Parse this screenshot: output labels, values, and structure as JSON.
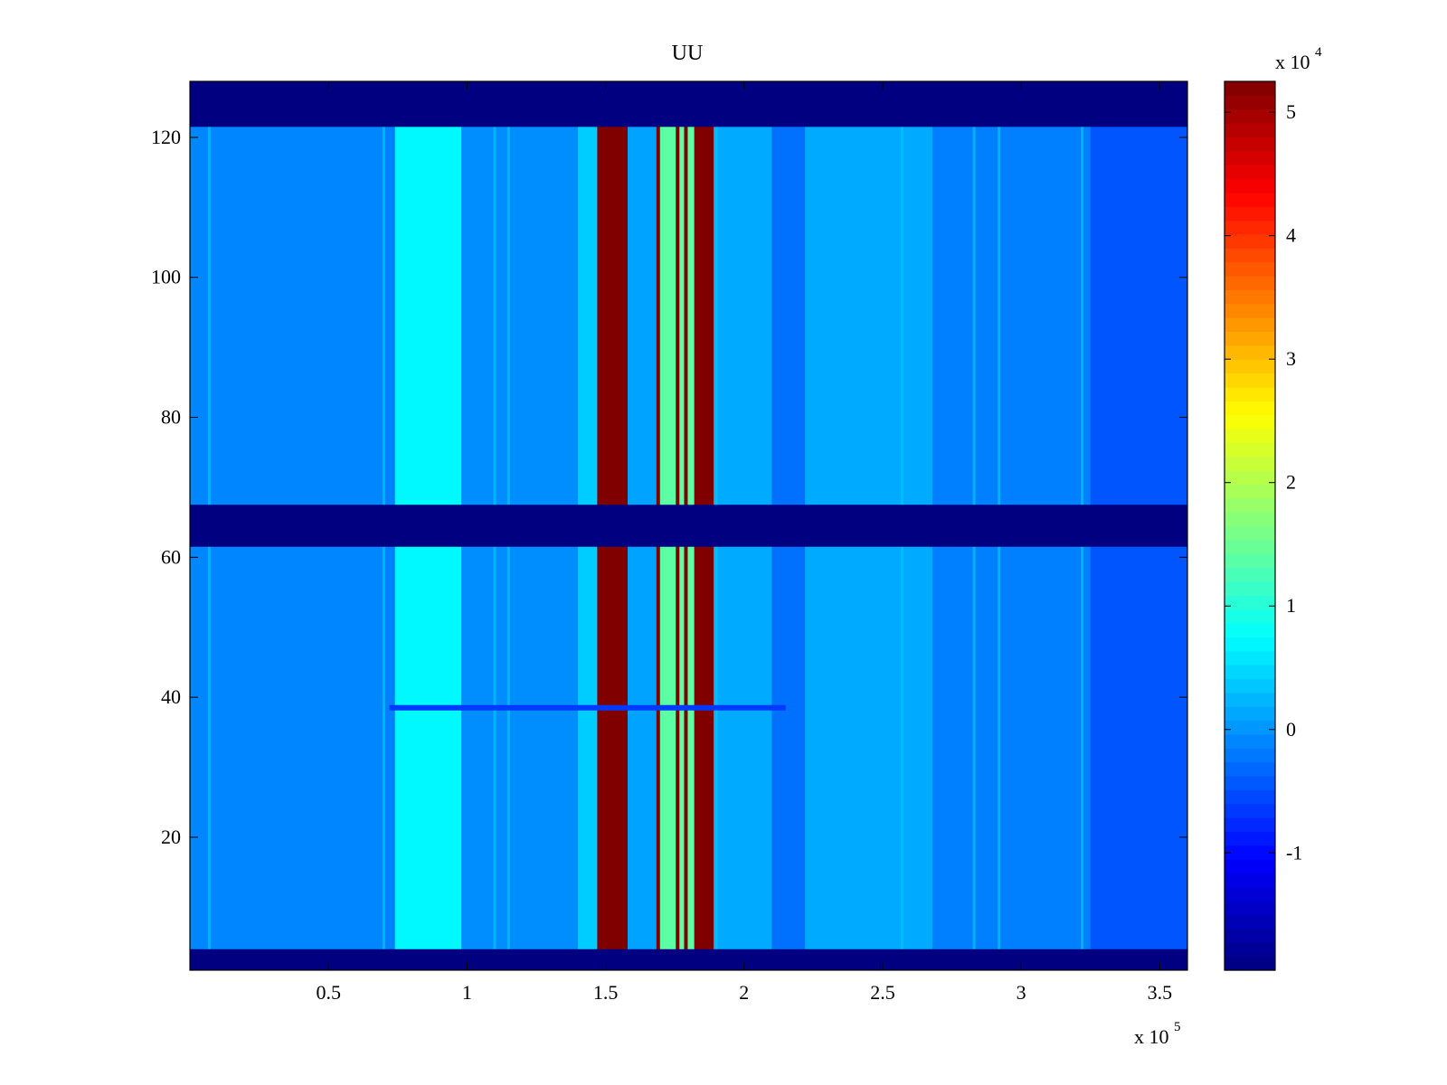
{
  "chart_data": {
    "type": "heatmap",
    "title": "UU",
    "colormap": "jet",
    "xlim": [
      0,
      360000
    ],
    "ylim": [
      1,
      128
    ],
    "x_ticks": [
      {
        "value": 50000,
        "label": "0.5"
      },
      {
        "value": 100000,
        "label": "1"
      },
      {
        "value": 150000,
        "label": "1.5"
      },
      {
        "value": 200000,
        "label": "2"
      },
      {
        "value": 250000,
        "label": "2.5"
      },
      {
        "value": 300000,
        "label": "3"
      },
      {
        "value": 350000,
        "label": "3.5"
      }
    ],
    "x_exponent_label": "x 10",
    "x_exponent_power": "5",
    "y_ticks": [
      {
        "value": 20,
        "label": "20"
      },
      {
        "value": 40,
        "label": "40"
      },
      {
        "value": 60,
        "label": "60"
      },
      {
        "value": 80,
        "label": "80"
      },
      {
        "value": 100,
        "label": "100"
      },
      {
        "value": 120,
        "label": "120"
      }
    ],
    "colorbar": {
      "clim": [
        -19500,
        52500
      ],
      "ticks": [
        {
          "value": -10000,
          "label": "-1"
        },
        {
          "value": 0,
          "label": "0"
        },
        {
          "value": 10000,
          "label": "1"
        },
        {
          "value": 20000,
          "label": "2"
        },
        {
          "value": 30000,
          "label": "3"
        },
        {
          "value": 40000,
          "label": "4"
        },
        {
          "value": 50000,
          "label": "5"
        }
      ],
      "exponent_label": "x 10",
      "exponent_power": "4"
    },
    "background_value": -1500,
    "low_rows": [
      {
        "y_from": 1,
        "y_to": 4,
        "value": -19500
      },
      {
        "y_from": 61.5,
        "y_to": 67.5,
        "value": -19500
      },
      {
        "y_from": 121.5,
        "y_to": 128,
        "value": -19500
      }
    ],
    "column_bands": [
      {
        "x_from": 0,
        "x_to": 70000,
        "value": -1000
      },
      {
        "x_from": 74000,
        "x_to": 98000,
        "value": 7000
      },
      {
        "x_from": 98000,
        "x_to": 146000,
        "value": -500
      },
      {
        "x_from": 140000,
        "x_to": 147000,
        "value": 4000
      },
      {
        "x_from": 147000,
        "x_to": 158000,
        "value": 52500
      },
      {
        "x_from": 158000,
        "x_to": 169000,
        "value": 1000
      },
      {
        "x_from": 169000,
        "x_to": 189000,
        "value": 14000
      },
      {
        "x_from": 182000,
        "x_to": 189000,
        "value": 52500
      },
      {
        "x_from": 189000,
        "x_to": 210000,
        "value": 1500
      },
      {
        "x_from": 210000,
        "x_to": 222000,
        "value": -2500
      },
      {
        "x_from": 222000,
        "x_to": 268000,
        "value": 1500
      },
      {
        "x_from": 268000,
        "x_to": 325000,
        "value": -1500
      },
      {
        "x_from": 325000,
        "x_to": 360000,
        "value": -4500
      }
    ],
    "thin_red_lines": [
      169000,
      176000,
      179000
    ],
    "light_streaks": [
      7000,
      70000,
      110000,
      115000,
      190000,
      257000,
      283000,
      292000,
      322000
    ],
    "cross_line": {
      "y": 38.5,
      "x_from": 72000,
      "x_to": 215000,
      "value": -6500
    }
  }
}
